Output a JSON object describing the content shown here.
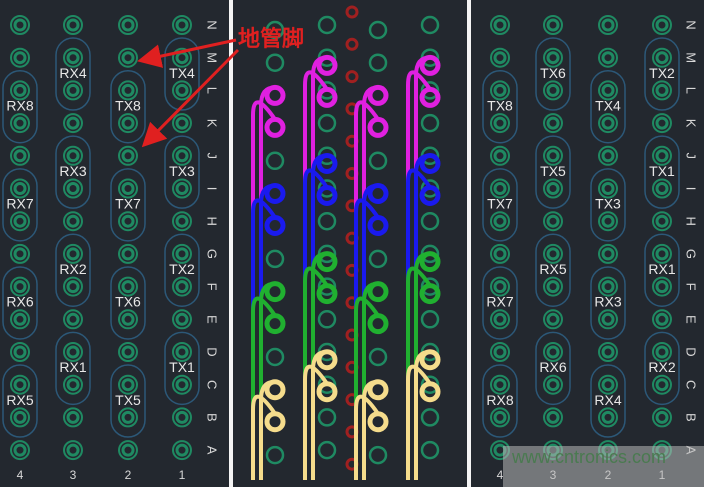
{
  "row_letters": [
    "N",
    "M",
    "L",
    "K",
    "J",
    "I",
    "H",
    "G",
    "F",
    "E",
    "D",
    "C",
    "B",
    "A"
  ],
  "column_numbers": [
    "4",
    "3",
    "2",
    "1"
  ],
  "left_panel": {
    "groups": [
      {
        "col": 0,
        "label": "RX8",
        "row": 2
      },
      {
        "col": 0,
        "label": "RX7",
        "row": 5
      },
      {
        "col": 0,
        "label": "RX6",
        "row": 8
      },
      {
        "col": 0,
        "label": "RX5",
        "row": 11
      },
      {
        "col": 1,
        "label": "RX4",
        "row": 1
      },
      {
        "col": 1,
        "label": "RX3",
        "row": 4
      },
      {
        "col": 1,
        "label": "RX2",
        "row": 7
      },
      {
        "col": 1,
        "label": "RX1",
        "row": 10
      },
      {
        "col": 2,
        "label": "TX8",
        "row": 2
      },
      {
        "col": 2,
        "label": "TX7",
        "row": 5
      },
      {
        "col": 2,
        "label": "TX6",
        "row": 8
      },
      {
        "col": 2,
        "label": "TX5",
        "row": 11
      },
      {
        "col": 3,
        "label": "TX4",
        "row": 1
      },
      {
        "col": 3,
        "label": "TX3",
        "row": 4
      },
      {
        "col": 3,
        "label": "TX2",
        "row": 7
      },
      {
        "col": 3,
        "label": "TX1",
        "row": 10
      }
    ]
  },
  "right_panel": {
    "groups": [
      {
        "col": 0,
        "label": "TX8",
        "row": 2
      },
      {
        "col": 0,
        "label": "TX7",
        "row": 5
      },
      {
        "col": 0,
        "label": "RX7",
        "row": 8
      },
      {
        "col": 0,
        "label": "RX8",
        "row": 11
      },
      {
        "col": 1,
        "label": "TX6",
        "row": 1
      },
      {
        "col": 1,
        "label": "TX5",
        "row": 4
      },
      {
        "col": 1,
        "label": "RX5",
        "row": 7
      },
      {
        "col": 1,
        "label": "RX6",
        "row": 10
      },
      {
        "col": 2,
        "label": "TX4",
        "row": 2
      },
      {
        "col": 2,
        "label": "TX3",
        "row": 5
      },
      {
        "col": 2,
        "label": "RX3",
        "row": 8
      },
      {
        "col": 2,
        "label": "RX4",
        "row": 11
      },
      {
        "col": 3,
        "label": "TX2",
        "row": 1
      },
      {
        "col": 3,
        "label": "TX1",
        "row": 4
      },
      {
        "col": 3,
        "label": "RX1",
        "row": 7
      },
      {
        "col": 3,
        "label": "RX2",
        "row": 10
      }
    ]
  },
  "annotation": {
    "text": "地管脚",
    "color": "#e02020"
  },
  "trace_colors": [
    "#e020e0",
    "#1a1aee",
    "#20b030",
    "#f5dc8c"
  ],
  "colors": {
    "board": "#23282f",
    "pad": "#1f8a62",
    "outline": "#2c5878",
    "via": "#8a1c1c"
  },
  "watermark": "www.cntronics.com"
}
